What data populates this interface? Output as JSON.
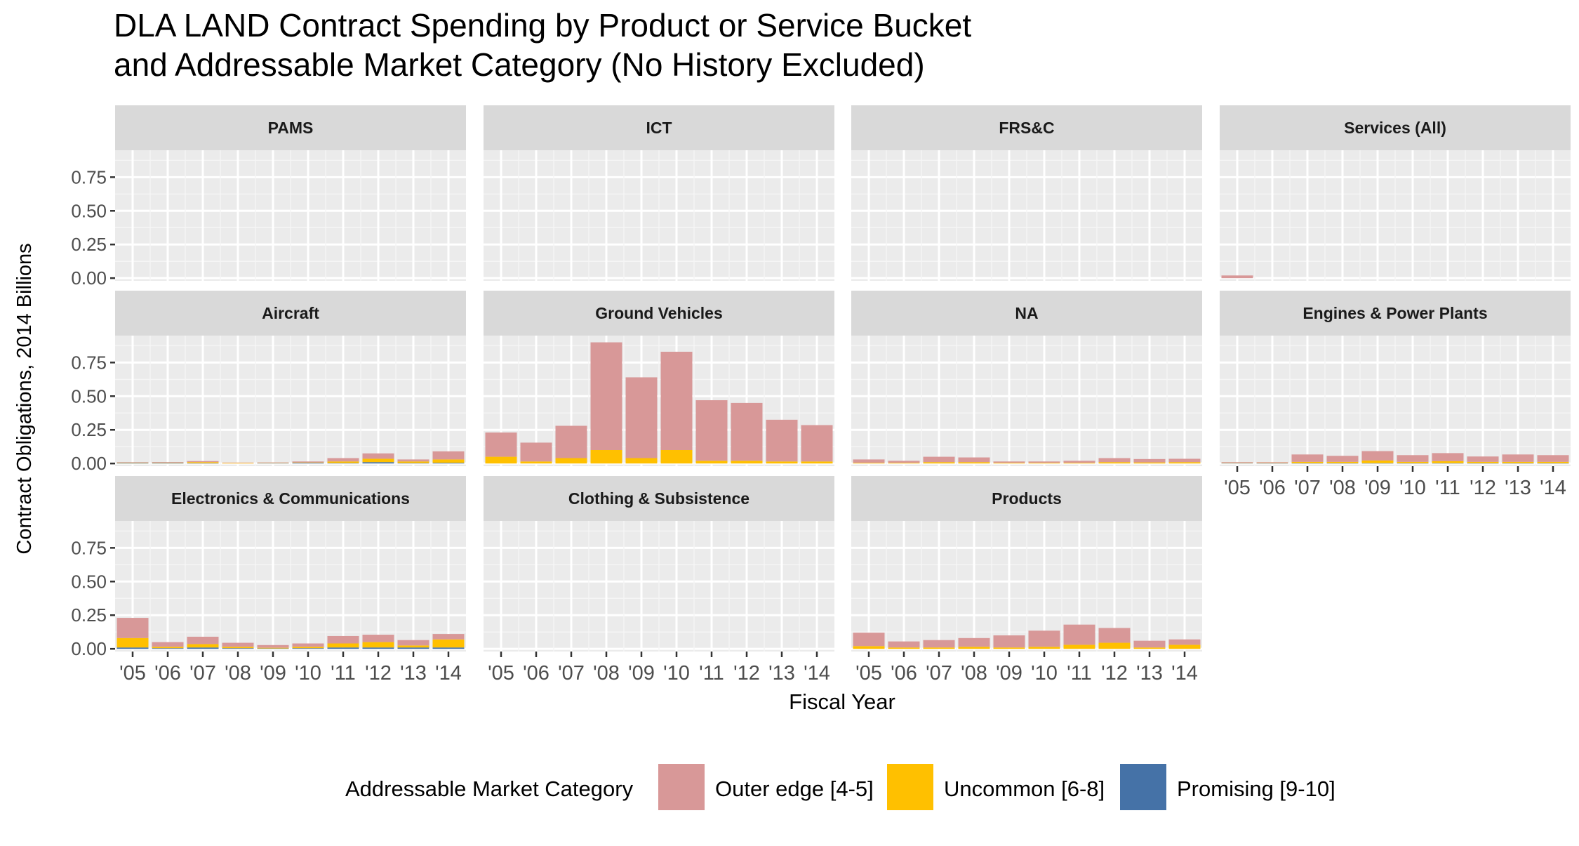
{
  "chart_data": {
    "type": "bar",
    "stacked": true,
    "title_lines": [
      "DLA LAND Contract Spending by Product or Service Bucket",
      "and Addressable Market Category (No History Excluded)"
    ],
    "xlabel": "Fiscal Year",
    "ylabel": "Contract Obligations, 2014 Billions",
    "ylim": [
      -0.02,
      0.95
    ],
    "yticks": [
      0,
      0.25,
      0.5,
      0.75
    ],
    "ytick_labels": [
      "0.00",
      "0.25",
      "0.50",
      "0.75"
    ],
    "categories": [
      "'05",
      "'06",
      "'07",
      "'08",
      "'09",
      "'10",
      "'11",
      "'12",
      "'13",
      "'14"
    ],
    "legend": {
      "title": "Addressable Market Category",
      "position": "bottom",
      "entries": [
        {
          "name": "Outer edge [4-5]",
          "color": "#d89898"
        },
        {
          "name": "Uncommon [6-8]",
          "color": "#ffc000"
        },
        {
          "name": "Promising [9-10]",
          "color": "#4572a7"
        }
      ]
    },
    "grid": true,
    "panels": [
      {
        "title": "PAMS",
        "series": [
          {
            "name": "Outer edge [4-5]",
            "values": [
              0,
              0,
              0,
              0,
              0,
              0,
              0,
              0,
              0,
              0
            ]
          },
          {
            "name": "Uncommon [6-8]",
            "values": [
              0,
              0,
              0,
              0,
              0,
              0,
              0,
              0,
              0,
              0
            ]
          },
          {
            "name": "Promising [9-10]",
            "values": [
              0,
              0,
              0,
              0,
              0,
              0,
              0,
              0,
              0,
              0
            ]
          }
        ]
      },
      {
        "title": "ICT",
        "series": [
          {
            "name": "Outer edge [4-5]",
            "values": [
              0,
              0,
              0,
              0,
              0,
              0,
              0,
              0,
              0,
              0
            ]
          },
          {
            "name": "Uncommon [6-8]",
            "values": [
              0,
              0,
              0,
              0,
              0,
              0,
              0,
              0,
              0,
              0
            ]
          },
          {
            "name": "Promising [9-10]",
            "values": [
              0,
              0,
              0,
              0,
              0,
              0,
              0,
              0,
              0,
              0
            ]
          }
        ]
      },
      {
        "title": "FRS&C",
        "series": [
          {
            "name": "Outer edge [4-5]",
            "values": [
              0,
              0,
              0,
              0,
              0,
              0,
              0,
              0,
              0,
              0
            ]
          },
          {
            "name": "Uncommon [6-8]",
            "values": [
              0,
              0,
              0,
              0,
              0,
              0,
              0,
              0,
              0,
              0
            ]
          },
          {
            "name": "Promising [9-10]",
            "values": [
              0,
              0,
              0,
              0,
              0,
              0,
              0,
              0,
              0,
              0
            ]
          }
        ]
      },
      {
        "title": "Services (All)",
        "series": [
          {
            "name": "Outer edge [4-5]",
            "values": [
              0.02,
              0,
              0,
              0,
              0,
              0,
              0,
              0,
              0,
              0
            ]
          },
          {
            "name": "Uncommon [6-8]",
            "values": [
              0,
              0,
              0,
              0,
              0,
              0,
              0,
              0,
              0,
              0
            ]
          },
          {
            "name": "Promising [9-10]",
            "values": [
              0,
              0,
              0,
              0,
              0,
              0,
              0,
              0,
              0,
              0
            ]
          }
        ]
      },
      {
        "title": "Aircraft",
        "series": [
          {
            "name": "Outer edge [4-5]",
            "values": [
              0.003,
              0.004,
              0.008,
              0.003,
              0.003,
              0.007,
              0.025,
              0.04,
              0.015,
              0.06
            ]
          },
          {
            "name": "Uncommon [6-8]",
            "values": [
              0.002,
              0.002,
              0.008,
              0.004,
              0.002,
              0.003,
              0.012,
              0.025,
              0.012,
              0.025
            ]
          },
          {
            "name": "Promising [9-10]",
            "values": [
              0.004,
              0.004,
              0.002,
              0,
              0.003,
              0.005,
              0.003,
              0.01,
              0.003,
              0.005
            ]
          }
        ]
      },
      {
        "title": "Ground Vehicles",
        "series": [
          {
            "name": "Outer edge [4-5]",
            "values": [
              0.18,
              0.14,
              0.24,
              0.8,
              0.6,
              0.73,
              0.45,
              0.43,
              0.31,
              0.27
            ]
          },
          {
            "name": "Uncommon [6-8]",
            "values": [
              0.05,
              0.015,
              0.04,
              0.1,
              0.04,
              0.1,
              0.02,
              0.02,
              0.015,
              0.015
            ]
          },
          {
            "name": "Promising [9-10]",
            "values": [
              0,
              0,
              0,
              0,
              0,
              0,
              0,
              0,
              0,
              0
            ]
          }
        ]
      },
      {
        "title": "NA",
        "series": [
          {
            "name": "Outer edge [4-5]",
            "values": [
              0.025,
              0.015,
              0.04,
              0.035,
              0.01,
              0.01,
              0.015,
              0.03,
              0.025,
              0.025
            ]
          },
          {
            "name": "Uncommon [6-8]",
            "values": [
              0.005,
              0.005,
              0.01,
              0.01,
              0.005,
              0.005,
              0.005,
              0.01,
              0.008,
              0.01
            ]
          },
          {
            "name": "Promising [9-10]",
            "values": [
              0,
              0,
              0,
              0,
              0,
              0,
              0,
              0,
              0,
              0
            ]
          }
        ]
      },
      {
        "title": "Engines & Power Plants",
        "series": [
          {
            "name": "Outer edge [4-5]",
            "values": [
              0.005,
              0.005,
              0.055,
              0.045,
              0.07,
              0.05,
              0.06,
              0.04,
              0.055,
              0.05
            ]
          },
          {
            "name": "Uncommon [6-8]",
            "values": [
              0.002,
              0.003,
              0.01,
              0.01,
              0.02,
              0.01,
              0.015,
              0.01,
              0.01,
              0.01
            ]
          },
          {
            "name": "Promising [9-10]",
            "values": [
              0.003,
              0.002,
              0.002,
              0.002,
              0.002,
              0.002,
              0.002,
              0.002,
              0.002,
              0.002
            ]
          }
        ]
      },
      {
        "title": "Electronics & Communications",
        "series": [
          {
            "name": "Outer edge [4-5]",
            "values": [
              0.15,
              0.035,
              0.055,
              0.03,
              0.02,
              0.025,
              0.055,
              0.055,
              0.04,
              0.04
            ]
          },
          {
            "name": "Uncommon [6-8]",
            "values": [
              0.07,
              0.01,
              0.025,
              0.01,
              0.005,
              0.01,
              0.03,
              0.04,
              0.015,
              0.06
            ]
          },
          {
            "name": "Promising [9-10]",
            "values": [
              0.01,
              0.005,
              0.01,
              0.005,
              0.003,
              0.005,
              0.01,
              0.01,
              0.01,
              0.01
            ]
          }
        ]
      },
      {
        "title": "Clothing & Subsistence",
        "series": [
          {
            "name": "Outer edge [4-5]",
            "values": [
              0,
              0,
              0,
              0,
              0,
              0,
              0,
              0,
              0,
              0
            ]
          },
          {
            "name": "Uncommon [6-8]",
            "values": [
              0,
              0,
              0,
              0,
              0,
              0,
              0,
              0,
              0,
              0
            ]
          },
          {
            "name": "Promising [9-10]",
            "values": [
              0,
              0,
              0,
              0,
              0,
              0,
              0,
              0,
              0,
              0
            ]
          }
        ]
      },
      {
        "title": "Products",
        "series": [
          {
            "name": "Outer edge [4-5]",
            "values": [
              0.1,
              0.045,
              0.055,
              0.065,
              0.09,
              0.12,
              0.15,
              0.11,
              0.05,
              0.04
            ]
          },
          {
            "name": "Uncommon [6-8]",
            "values": [
              0.02,
              0.01,
              0.01,
              0.015,
              0.01,
              0.015,
              0.03,
              0.045,
              0.01,
              0.03
            ]
          },
          {
            "name": "Promising [9-10]",
            "values": [
              0,
              0,
              0,
              0,
              0,
              0,
              0,
              0,
              0,
              0
            ]
          }
        ]
      }
    ]
  }
}
